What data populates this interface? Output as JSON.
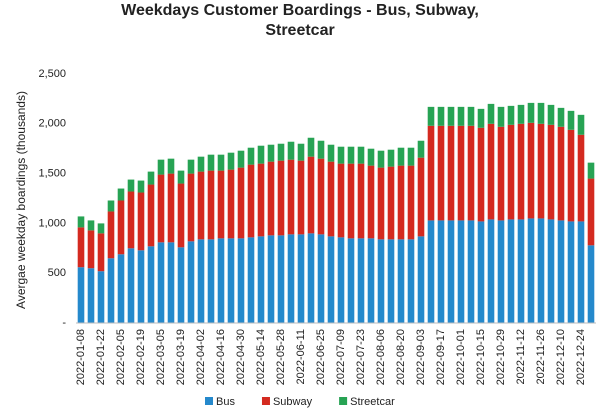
{
  "chart_data": {
    "type": "stacked-bar",
    "title": "Weekdays Customer Boardings - Bus, Subway, Streetcar",
    "y_label": "Avergae weekday boardings (thousands)",
    "categories": [
      "2022-01-08",
      null,
      "2022-01-22",
      null,
      "2022-02-05",
      null,
      "2022-02-19",
      null,
      "2022-03-05",
      null,
      "2022-03-19",
      null,
      "2022-04-02",
      null,
      "2022-04-16",
      null,
      "2022-04-30",
      null,
      "2022-05-14",
      null,
      "2022-05-28",
      null,
      "2022-06-11",
      null,
      "2022-06-25",
      null,
      "2022-07-09",
      null,
      "2022-07-23",
      null,
      "2022-08-06",
      null,
      "2022-08-20",
      null,
      "2022-09-03",
      null,
      "2022-09-17",
      null,
      "2022-10-01",
      null,
      "2022-10-15",
      null,
      "2022-10-29",
      null,
      "2022-11-12",
      null,
      "2022-11-26",
      null,
      "2022-12-10",
      null,
      "2022-12-24",
      null
    ],
    "series": [
      {
        "name": "Bus",
        "color": "#2589cc",
        "values": [
          560,
          550,
          520,
          650,
          690,
          750,
          730,
          770,
          810,
          810,
          760,
          820,
          840,
          840,
          850,
          850,
          850,
          860,
          870,
          880,
          880,
          890,
          890,
          900,
          890,
          870,
          860,
          850,
          850,
          850,
          840,
          840,
          840,
          840,
          870,
          1030,
          1030,
          1030,
          1030,
          1030,
          1020,
          1040,
          1030,
          1040,
          1040,
          1050,
          1050,
          1040,
          1030,
          1020,
          1020,
          780
        ]
      },
      {
        "name": "Subway",
        "color": "#d42a20",
        "values": [
          400,
          380,
          380,
          470,
          540,
          570,
          580,
          620,
          680,
          690,
          640,
          680,
          680,
          690,
          680,
          690,
          710,
          730,
          730,
          740,
          750,
          750,
          740,
          770,
          760,
          750,
          740,
          750,
          750,
          730,
          720,
          730,
          740,
          740,
          790,
          950,
          950,
          950,
          950,
          950,
          940,
          960,
          940,
          950,
          960,
          960,
          950,
          950,
          940,
          920,
          870,
          670
        ]
      },
      {
        "name": "Streetcar",
        "color": "#27a354",
        "values": [
          110,
          100,
          100,
          110,
          120,
          120,
          120,
          130,
          150,
          150,
          130,
          140,
          150,
          160,
          160,
          170,
          170,
          170,
          180,
          170,
          170,
          180,
          170,
          190,
          180,
          170,
          170,
          170,
          170,
          170,
          170,
          170,
          180,
          180,
          170,
          190,
          190,
          190,
          190,
          190,
          190,
          200,
          200,
          190,
          190,
          200,
          210,
          200,
          190,
          190,
          200,
          160
        ]
      }
    ],
    "ylim": [
      0,
      2500
    ],
    "yticks": [
      {
        "value": 0,
        "label": "-"
      },
      500,
      {
        "value": 1000,
        "label": "1,000"
      },
      {
        "value": 1500,
        "label": "1,500"
      },
      {
        "value": 2000,
        "label": "2,000"
      },
      {
        "value": 2500,
        "label": "2,500"
      }
    ],
    "legend": "bottom"
  }
}
